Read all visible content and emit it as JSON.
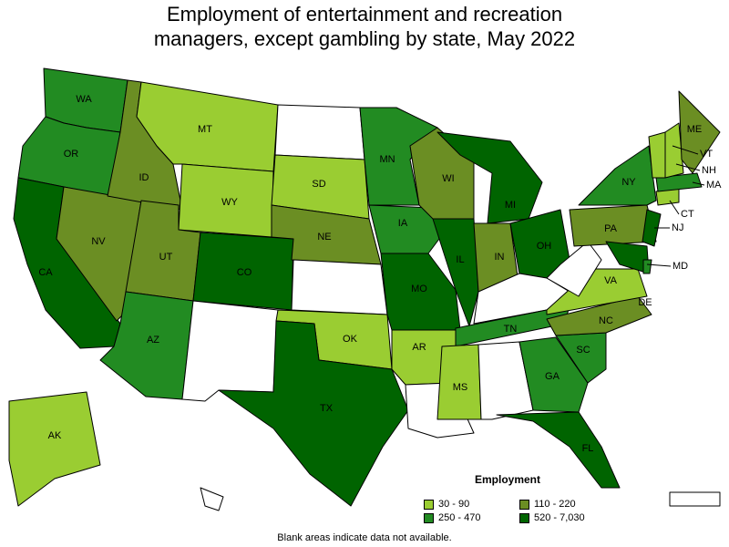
{
  "title_line1": "Employment of entertainment and recreation",
  "title_line2": "managers, except gambling by state, May 2022",
  "legend": {
    "title": "Employment",
    "bins": [
      {
        "label": "30 - 90",
        "color": "#9acd32"
      },
      {
        "label": "110 - 220",
        "color": "#6b8e23"
      },
      {
        "label": "250 - 470",
        "color": "#228b22"
      },
      {
        "label": "520 - 7,030",
        "color": "#006400"
      }
    ]
  },
  "footnote": "Blank areas indicate data not available.",
  "chart_data": {
    "type": "choropleth",
    "value_bins": [
      "30 - 90",
      "110 - 220",
      "250 - 470",
      "520 - 7,030"
    ],
    "states": {
      "WA": "250 - 470",
      "OR": "250 - 470",
      "CA": "520 - 7,030",
      "NV": "110 - 220",
      "ID": "110 - 220",
      "MT": "30 - 90",
      "WY": "30 - 90",
      "UT": "110 - 220",
      "AZ": "250 - 470",
      "CO": "520 - 7,030",
      "NM": null,
      "ND": null,
      "SD": "30 - 90",
      "NE": "110 - 220",
      "KS": null,
      "OK": "30 - 90",
      "TX": "520 - 7,030",
      "MN": "250 - 470",
      "IA": "250 - 470",
      "MO": "520 - 7,030",
      "AR": "30 - 90",
      "LA": null,
      "WI": "110 - 220",
      "IL": "520 - 7,030",
      "MI": "520 - 7,030",
      "IN": "110 - 220",
      "OH": "520 - 7,030",
      "KY": null,
      "TN": "250 - 470",
      "MS": "30 - 90",
      "AL": null,
      "GA": "250 - 470",
      "FL": "520 - 7,030",
      "SC": "250 - 470",
      "NC": "110 - 220",
      "VA": "30 - 90",
      "WV": null,
      "PA": "110 - 220",
      "NY": "250 - 470",
      "NJ": "520 - 7,030",
      "MD": "520 - 7,030",
      "DE": "250 - 470",
      "CT": "30 - 90",
      "MA": "250 - 470",
      "VT": "30 - 90",
      "NH": "30 - 90",
      "ME": "110 - 220",
      "AK": "30 - 90",
      "HI": null,
      "PR": null
    }
  }
}
